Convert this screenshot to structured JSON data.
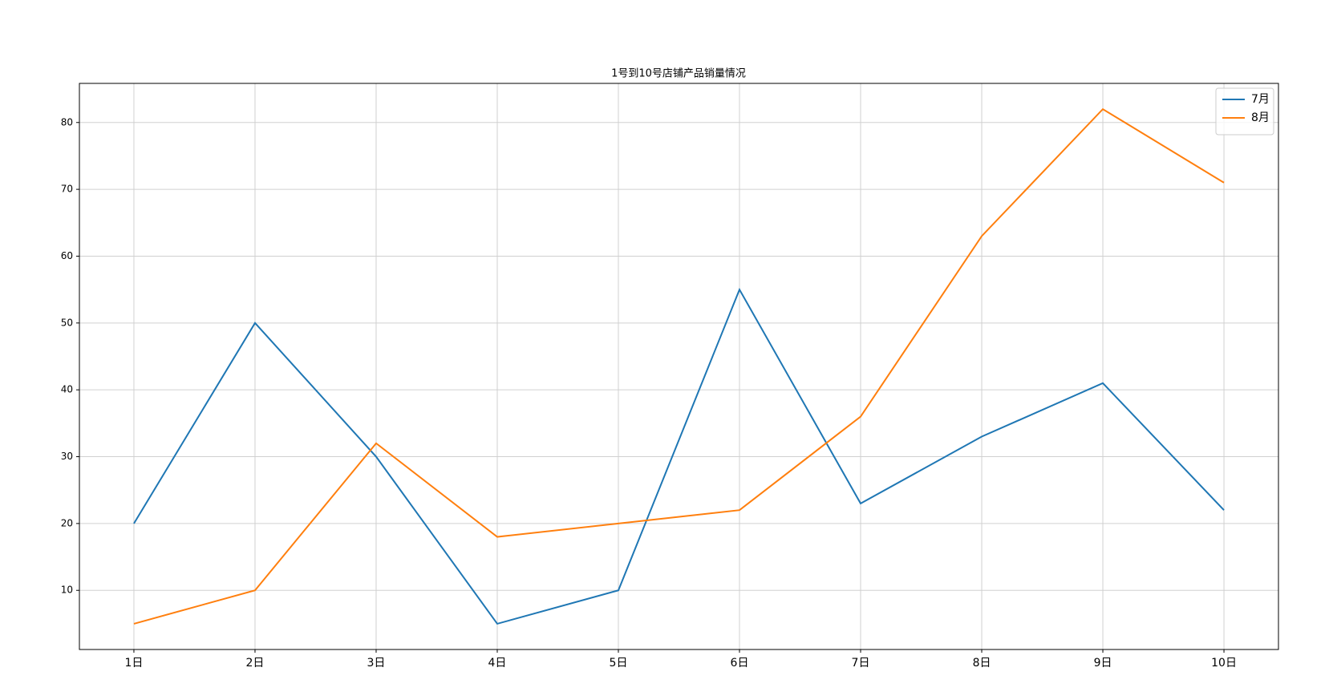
{
  "chart_data": {
    "type": "line",
    "title": "1号到10号店铺产品销量情况",
    "categories": [
      "1日",
      "2日",
      "3日",
      "4日",
      "5日",
      "6日",
      "7日",
      "8日",
      "9日",
      "10日"
    ],
    "series": [
      {
        "name": "7月",
        "color": "#1f77b4",
        "values": [
          20,
          50,
          30,
          5,
          10,
          55,
          23,
          33,
          41,
          22
        ]
      },
      {
        "name": "8月",
        "color": "#ff7f0e",
        "values": [
          5,
          10,
          32,
          18,
          20,
          22,
          36,
          63,
          82,
          71
        ]
      }
    ],
    "ylim": [
      1.15,
      85.85
    ],
    "yticks": [
      10,
      20,
      30,
      40,
      50,
      60,
      70,
      80
    ],
    "grid": true,
    "legend": "upper right"
  }
}
